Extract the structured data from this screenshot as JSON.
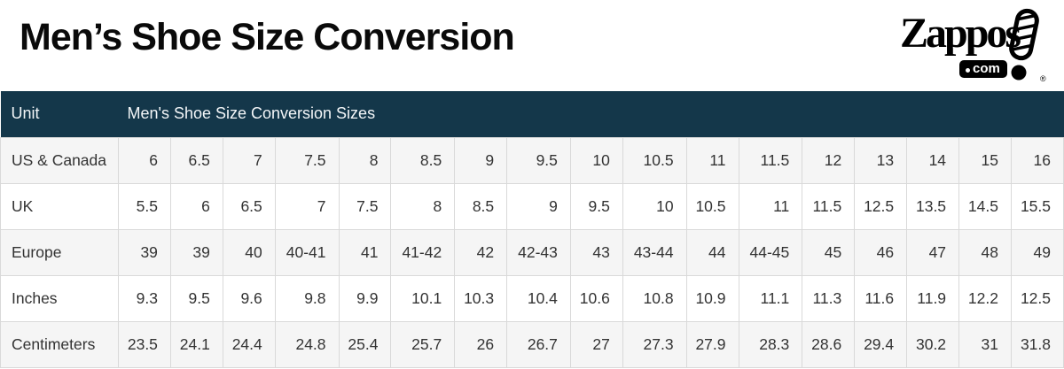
{
  "page": {
    "title": "Men’s Shoe Size Conversion"
  },
  "logo": {
    "brand": "Zappos",
    "badge_text": "com",
    "registered": "®"
  },
  "colors": {
    "header_bg": "#14374a",
    "header_text": "#ffffff",
    "row_alt_bg": "#f5f5f5",
    "row_bg": "#ffffff",
    "border": "#d9d9d9",
    "body_text": "#333333",
    "title_text": "#0a0a0a",
    "logo_black": "#000000"
  },
  "chart_data": {
    "type": "table",
    "title": "Men’s Shoe Size Conversion",
    "header": {
      "unit_label": "Unit",
      "sizes_label": "Men's Shoe Size Conversion Sizes"
    },
    "rows": [
      {
        "label": "US & Canada",
        "values": [
          "6",
          "6.5",
          "7",
          "7.5",
          "8",
          "8.5",
          "9",
          "9.5",
          "10",
          "10.5",
          "11",
          "11.5",
          "12",
          "13",
          "14",
          "15",
          "16"
        ]
      },
      {
        "label": "UK",
        "values": [
          "5.5",
          "6",
          "6.5",
          "7",
          "7.5",
          "8",
          "8.5",
          "9",
          "9.5",
          "10",
          "10.5",
          "11",
          "11.5",
          "12.5",
          "13.5",
          "14.5",
          "15.5"
        ]
      },
      {
        "label": "Europe",
        "values": [
          "39",
          "39",
          "40",
          "40-41",
          "41",
          "41-42",
          "42",
          "42-43",
          "43",
          "43-44",
          "44",
          "44-45",
          "45",
          "46",
          "47",
          "48",
          "49"
        ]
      },
      {
        "label": "Inches",
        "values": [
          "9.3",
          "9.5",
          "9.6",
          "9.8",
          "9.9",
          "10.1",
          "10.3",
          "10.4",
          "10.6",
          "10.8",
          "10.9",
          "11.1",
          "11.3",
          "11.6",
          "11.9",
          "12.2",
          "12.5"
        ]
      },
      {
        "label": "Centimeters",
        "values": [
          "23.5",
          "24.1",
          "24.4",
          "24.8",
          "25.4",
          "25.7",
          "26",
          "26.7",
          "27",
          "27.3",
          "27.9",
          "28.3",
          "28.6",
          "29.4",
          "30.2",
          "31",
          "31.8"
        ]
      }
    ]
  }
}
